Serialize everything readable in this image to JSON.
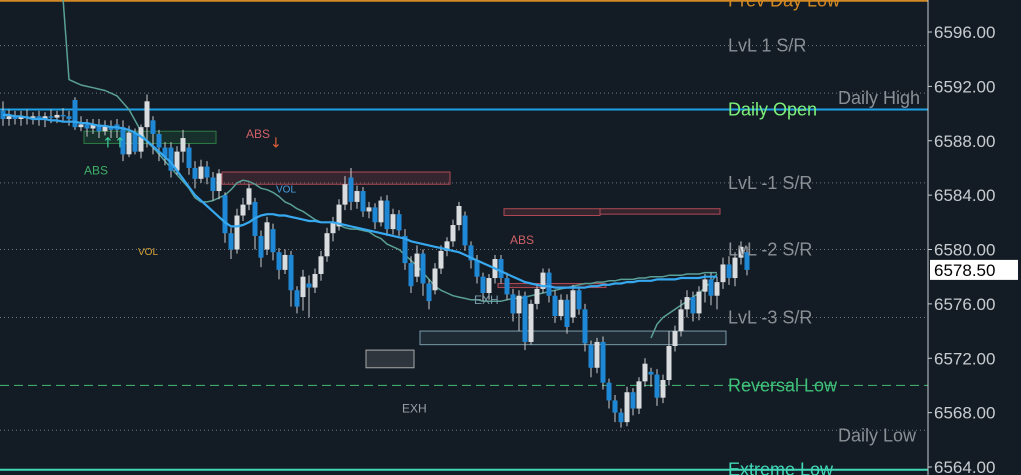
{
  "chart_data": {
    "type": "candlestick",
    "ylim": [
      6563.3,
      6598.4
    ],
    "y_ticks": [
      "6596.00",
      "6592.00",
      "6588.00",
      "6584.00",
      "6580.00",
      "6576.00",
      "6572.00",
      "6568.00",
      "6564.00"
    ],
    "y_tick_values": [
      6596,
      6592,
      6588,
      6584,
      6580,
      6576,
      6572,
      6568,
      6564
    ],
    "last_price": "6578.50",
    "last_price_value": 6578.5,
    "levels": [
      {
        "label": "Prev Day Low",
        "value": 6598.3,
        "color": "#d48a24",
        "style": "solid"
      },
      {
        "label": "LvL 1 S/R",
        "value": 6595.0,
        "color": "#8a9096",
        "style": "dotted"
      },
      {
        "label": "Daily High",
        "value": 6591.5,
        "color": "#8a9096",
        "style": "dotted"
      },
      {
        "label": "Daily Open",
        "value": 6590.3,
        "color": "#1ea0e6",
        "style": "solid"
      },
      {
        "label": "LvL -1 S/R",
        "value": 6584.9,
        "color": "#8a9096",
        "style": "dotted"
      },
      {
        "label": "LvL -2 S/R",
        "value": 6580.0,
        "color": "#8a9096",
        "style": "dotted"
      },
      {
        "label": "LvL -3 S/R",
        "value": 6575.0,
        "color": "#8a9096",
        "style": "dotted"
      },
      {
        "label": "Reversal Low",
        "value": 6570.0,
        "color": "#3fa86a",
        "style": "dashed"
      },
      {
        "label": "Daily Low",
        "value": 6566.7,
        "color": "#8a9096",
        "style": "dotted"
      },
      {
        "label": "Extreme Low",
        "value": 6563.8,
        "color": "#40d8b8",
        "style": "solid"
      }
    ],
    "candles": [
      [
        6590.2,
        6589.6,
        6590.9,
        6589.1
      ],
      [
        6589.6,
        6589.8,
        6590.3,
        6589.1
      ],
      [
        6589.8,
        6589.6,
        6590.2,
        6589.2
      ],
      [
        6589.6,
        6589.8,
        6590.2,
        6589.1
      ],
      [
        6589.8,
        6589.7,
        6590.3,
        6589.2
      ],
      [
        6589.7,
        6589.8,
        6590.1,
        6589.2
      ],
      [
        6589.8,
        6589.6,
        6590.2,
        6589.1
      ],
      [
        6589.6,
        6589.8,
        6590.1,
        6589.0
      ],
      [
        6589.8,
        6589.7,
        6590.3,
        6589.3
      ],
      [
        6589.7,
        6589.9,
        6590.2,
        6589.3
      ],
      [
        6589.9,
        6589.8,
        6590.4,
        6589.4
      ],
      [
        6589.8,
        6589.6,
        6590.2,
        6589.1
      ],
      [
        6591.0,
        6589.0,
        6591.2,
        6588.8
      ],
      [
        6589.0,
        6589.2,
        6589.8,
        6588.7
      ],
      [
        6589.2,
        6588.9,
        6589.6,
        6588.3
      ],
      [
        6588.9,
        6589.2,
        6589.6,
        6588.5
      ],
      [
        6589.2,
        6588.7,
        6589.6,
        6588.2
      ],
      [
        6588.7,
        6589.1,
        6589.5,
        6588.4
      ],
      [
        6589.1,
        6588.8,
        6589.5,
        6588.2
      ],
      [
        6589.2,
        6588.8,
        6589.6,
        6588.2
      ],
      [
        6589.0,
        6587.0,
        6589.5,
        6586.5
      ],
      [
        6587.0,
        6588.6,
        6589.1,
        6586.8
      ],
      [
        6588.6,
        6587.2,
        6588.9,
        6587.0
      ],
      [
        6587.2,
        6589.0,
        6589.2,
        6586.7
      ],
      [
        6589.0,
        6590.9,
        6591.4,
        6587.5
      ],
      [
        6589.5,
        6588.5,
        6589.8,
        6587.0
      ],
      [
        6588.5,
        6587.5,
        6588.8,
        6586.5
      ],
      [
        6587.5,
        6586.8,
        6587.9,
        6586.2
      ],
      [
        6587.5,
        6585.8,
        6587.9,
        6585.3
      ],
      [
        6585.8,
        6587.2,
        6587.6,
        6585.5
      ],
      [
        6587.2,
        6588.2,
        6588.8,
        6586.4
      ],
      [
        6587.5,
        6586.0,
        6587.8,
        6585.5
      ],
      [
        6586.0,
        6585.2,
        6586.5,
        6584.5
      ],
      [
        6585.2,
        6586.1,
        6586.6,
        6584.9
      ],
      [
        6586.1,
        6585.3,
        6586.5,
        6584.8
      ],
      [
        6585.3,
        6584.3,
        6585.7,
        6583.6
      ],
      [
        6584.3,
        6585.6,
        6585.9,
        6583.7
      ],
      [
        6584.0,
        6581.2,
        6584.2,
        6580.5
      ],
      [
        6581.2,
        6580.0,
        6581.6,
        6579.3
      ],
      [
        6580.0,
        6582.5,
        6583.0,
        6579.7
      ],
      [
        6582.5,
        6583.3,
        6583.8,
        6582.1
      ],
      [
        6583.3,
        6584.5,
        6584.8,
        6582.9
      ],
      [
        6583.5,
        6581.0,
        6583.8,
        6580.0
      ],
      [
        6581.0,
        6579.4,
        6581.4,
        6578.7
      ],
      [
        6580.0,
        6582.0,
        6582.4,
        6579.6
      ],
      [
        6581.5,
        6579.8,
        6581.9,
        6579.2
      ],
      [
        6579.8,
        6578.5,
        6580.1,
        6577.8
      ],
      [
        6578.5,
        6579.6,
        6580.0,
        6578.2
      ],
      [
        6579.6,
        6577.0,
        6579.9,
        6575.8
      ],
      [
        6577.0,
        6575.8,
        6577.3,
        6575.3
      ],
      [
        6576.5,
        6578.0,
        6578.5,
        6575.5
      ],
      [
        6577.5,
        6577.2,
        6578.1,
        6575.0
      ],
      [
        6577.2,
        6578.2,
        6578.6,
        6576.8
      ],
      [
        6578.2,
        6579.5,
        6579.9,
        6577.7
      ],
      [
        6579.5,
        6581.2,
        6581.6,
        6579.1
      ],
      [
        6581.2,
        6582.0,
        6582.4,
        6580.6
      ],
      [
        6581.7,
        6583.3,
        6583.7,
        6581.4
      ],
      [
        6583.3,
        6584.8,
        6585.4,
        6582.9
      ],
      [
        6585.3,
        6583.5,
        6586.0,
        6582.9
      ],
      [
        6583.5,
        6584.3,
        6584.7,
        6583.0
      ],
      [
        6584.3,
        6582.8,
        6584.6,
        6582.4
      ],
      [
        6582.8,
        6583.1,
        6583.5,
        6582.3
      ],
      [
        6583.1,
        6582.0,
        6583.4,
        6581.5
      ],
      [
        6582.0,
        6583.6,
        6583.9,
        6581.7
      ],
      [
        6583.6,
        6581.5,
        6584.0,
        6581.0
      ],
      [
        6581.5,
        6582.6,
        6583.0,
        6581.1
      ],
      [
        6582.6,
        6581.4,
        6582.9,
        6581.0
      ],
      [
        6581.0,
        6579.0,
        6581.5,
        6578.5
      ],
      [
        6579.0,
        6577.3,
        6579.5,
        6576.8
      ],
      [
        6578.0,
        6579.7,
        6580.3,
        6577.6
      ],
      [
        6579.7,
        6577.5,
        6580.0,
        6576.6
      ],
      [
        6577.5,
        6576.2,
        6577.8,
        6575.6
      ],
      [
        6577.0,
        6578.6,
        6579.0,
        6576.7
      ],
      [
        6578.6,
        6579.9,
        6580.3,
        6578.2
      ],
      [
        6579.9,
        6580.6,
        6580.9,
        6579.5
      ],
      [
        6580.6,
        6581.8,
        6582.2,
        6580.2
      ],
      [
        6581.8,
        6583.2,
        6583.5,
        6581.4
      ],
      [
        6582.5,
        6580.3,
        6582.8,
        6579.9
      ],
      [
        6580.3,
        6579.2,
        6580.6,
        6578.6
      ],
      [
        6579.2,
        6578.0,
        6579.6,
        6577.5
      ],
      [
        6578.0,
        6576.8,
        6578.3,
        6576.2
      ],
      [
        6576.8,
        6577.9,
        6578.2,
        6576.3
      ],
      [
        6577.9,
        6579.3,
        6579.6,
        6577.5
      ],
      [
        6579.3,
        6577.9,
        6579.6,
        6577.5
      ],
      [
        6577.9,
        6576.7,
        6578.3,
        6576.3
      ],
      [
        6576.7,
        6575.3,
        6577.1,
        6574.7
      ],
      [
        6575.3,
        6576.6,
        6577.0,
        6574.0
      ],
      [
        6576.6,
        6573.2,
        6576.9,
        6572.6
      ],
      [
        6573.2,
        6576.0,
        6576.3,
        6573.0
      ],
      [
        6576.0,
        6577.1,
        6577.5,
        6575.6
      ],
      [
        6577.1,
        6578.3,
        6578.6,
        6576.8
      ],
      [
        6578.3,
        6576.6,
        6578.6,
        6576.1
      ],
      [
        6576.6,
        6575.1,
        6577.0,
        6574.6
      ],
      [
        6575.1,
        6576.3,
        6576.7,
        6574.8
      ],
      [
        6576.3,
        6574.3,
        6576.7,
        6573.8
      ],
      [
        6575.0,
        6577.0,
        6577.4,
        6574.6
      ],
      [
        6577.0,
        6575.6,
        6577.3,
        6575.2
      ],
      [
        6575.6,
        6573.1,
        6576.0,
        6572.5
      ],
      [
        6573.0,
        6571.3,
        6573.3,
        6570.6
      ],
      [
        6571.3,
        6573.2,
        6573.5,
        6570.9
      ],
      [
        6573.2,
        6570.2,
        6573.6,
        6569.7
      ],
      [
        6570.2,
        6568.9,
        6570.5,
        6568.3
      ],
      [
        6568.9,
        6568.0,
        6569.3,
        6567.3
      ],
      [
        6568.0,
        6567.3,
        6568.3,
        6566.9
      ],
      [
        6567.3,
        6569.5,
        6569.9,
        6567.0
      ],
      [
        6569.5,
        6568.3,
        6569.8,
        6567.8
      ],
      [
        6568.3,
        6570.3,
        6570.6,
        6567.9
      ],
      [
        6570.3,
        6571.6,
        6572.0,
        6569.9
      ],
      [
        6571.0,
        6570.8,
        6571.3,
        6569.9
      ],
      [
        6570.8,
        6569.1,
        6571.2,
        6568.5
      ],
      [
        6569.1,
        6570.4,
        6570.8,
        6568.7
      ],
      [
        6570.4,
        6572.9,
        6574.0,
        6570.0
      ],
      [
        6572.9,
        6574.0,
        6574.4,
        6572.5
      ],
      [
        6574.0,
        6575.6,
        6576.3,
        6573.6
      ],
      [
        6575.6,
        6576.5,
        6577.0,
        6575.0
      ],
      [
        6576.5,
        6575.3,
        6576.9,
        6574.7
      ],
      [
        6575.3,
        6576.9,
        6577.3,
        6574.8
      ],
      [
        6576.9,
        6577.8,
        6578.2,
        6576.1
      ],
      [
        6577.8,
        6576.6,
        6578.3,
        6575.9
      ],
      [
        6576.6,
        6577.6,
        6578.0,
        6575.6
      ],
      [
        6577.6,
        6578.9,
        6579.4,
        6577.1
      ],
      [
        6578.9,
        6577.9,
        6579.5,
        6577.4
      ],
      [
        6577.9,
        6579.4,
        6579.8,
        6577.3
      ],
      [
        6579.4,
        6580.2,
        6580.6,
        6578.9
      ],
      [
        6579.8,
        6578.5,
        6580.2,
        6578.1
      ]
    ],
    "vwap": [
      6589.9,
      6589.9,
      6589.8,
      6589.8,
      6589.7,
      6589.6,
      6589.6,
      6589.6,
      6589.5,
      6589.5,
      6589.4,
      6589.4,
      6589.4,
      6589.3,
      6589.3,
      6589.2,
      6589.1,
      6589.1,
      6589.0,
      6589.0,
      6588.9,
      6588.8,
      6588.6,
      6588.3,
      6588.0,
      6587.6,
      6587.2,
      6586.8,
      6586.4,
      6585.8,
      6585.2,
      6584.6,
      6584.0,
      6583.6,
      6583.2,
      6582.8,
      6582.4,
      6582.0,
      6581.7,
      6581.7,
      6581.8,
      6582.0,
      6582.3,
      6582.5,
      6582.6,
      6582.6,
      6582.5,
      6582.5,
      6582.4,
      6582.3,
      6582.2,
      6582.1,
      6582.1,
      6582.0,
      6582.0,
      6582.0,
      6581.9,
      6581.8,
      6581.7,
      6581.6,
      6581.5,
      6581.4,
      6581.3,
      6581.2,
      6581.1,
      6581.0,
      6580.9,
      6580.8,
      6580.6,
      6580.5,
      6580.4,
      6580.3,
      6580.2,
      6580.1,
      6580.0,
      6579.9,
      6579.8,
      6579.6,
      6579.4,
      6579.2,
      6579.0,
      6578.8,
      6578.6,
      6578.4,
      6578.2,
      6578.0,
      6577.8,
      6577.6,
      6577.5,
      6577.4,
      6577.3,
      6577.3,
      6577.2,
      6577.2,
      6577.2,
      6577.2,
      6577.2,
      6577.2,
      6577.3,
      6577.3,
      6577.4,
      6577.4,
      6577.5,
      6577.5,
      6577.6,
      6577.6,
      6577.7,
      6577.7,
      6577.7,
      6577.8,
      6577.8,
      6577.8,
      6577.8,
      6577.9,
      6577.9,
      6577.9,
      6577.9,
      6578.0,
      6578.0,
      6578.0
    ],
    "upper_band": [
      null,
      null,
      null,
      null,
      null,
      null,
      null,
      null,
      null,
      null,
      6598.5,
      6592.5,
      6592.3,
      6592.1,
      6592.0,
      6591.9,
      6591.8,
      6591.7,
      6591.5,
      6591.3,
      6590.8,
      6590.3,
      6589.5,
      6588.7,
      6587.9,
      6587.5,
      6587.0,
      6586.5,
      6586.0,
      6585.5,
      6585.0,
      6584.5,
      6583.8,
      6583.5,
      6583.5,
      6583.6,
      6583.8,
      6584.0,
      6584.4,
      6584.9,
      6585.1,
      6585.0,
      6584.8,
      6584.5,
      6584.4,
      6584.2,
      6583.9,
      6583.5,
      6583.3,
      6583.0,
      6582.8,
      6582.5,
      6582.2,
      6582.0,
      6582.0,
      6582.0,
      6581.8,
      6581.6,
      6581.5,
      6581.5,
      6581.4,
      6581.3,
      6581.0,
      6580.8,
      6580.4,
      6580.2,
      6580.0,
      6579.6,
      6579.2,
      6578.8,
      6578.3,
      6577.8,
      6577.3,
      6577.0,
      6576.8,
      6576.6,
      6576.5,
      6576.4,
      6576.3,
      6576.3,
      6576.2,
      6576.2,
      6576.2,
      6576.2,
      6576.3,
      6576.4,
      6576.4,
      6576.5,
      6576.6,
      6576.7,
      6576.8,
      6576.9,
      6577.0,
      6577.1,
      6577.2,
      6577.3,
      6577.4,
      6577.5,
      6577.5,
      6577.6,
      6577.6,
      6577.7,
      6577.7,
      6577.8,
      6577.8,
      6577.8,
      6577.9,
      6577.9,
      6578.0,
      6578.0,
      6578.0,
      6578.1,
      6578.1,
      6578.1,
      6578.2,
      6578.2,
      6578.2,
      6578.3,
      6578.3,
      6578.3
    ],
    "lower_band": [
      null,
      null,
      null,
      null,
      null,
      null,
      null,
      null,
      null,
      null,
      null,
      null,
      null,
      null,
      null,
      null,
      null,
      null,
      null,
      null,
      null,
      null,
      null,
      null,
      null,
      null,
      null,
      null,
      null,
      null,
      null,
      null,
      null,
      null,
      null,
      null,
      null,
      null,
      null,
      null,
      null,
      null,
      null,
      null,
      null,
      null,
      null,
      null,
      null,
      null,
      null,
      null,
      null,
      null,
      null,
      null,
      null,
      null,
      null,
      null,
      null,
      null,
      null,
      null,
      null,
      null,
      null,
      null,
      null,
      null,
      null,
      null,
      null,
      null,
      null,
      null,
      null,
      null,
      null,
      null,
      null,
      null,
      null,
      null,
      null,
      null,
      null,
      null,
      null,
      null,
      null,
      null,
      null,
      null,
      null,
      null,
      null,
      null,
      null,
      null,
      null,
      null,
      null,
      null,
      null,
      null,
      null,
      null,
      6573.5,
      6574.5,
      6575.0,
      6575.3,
      6575.6,
      6575.9,
      6576.2,
      6576.5,
      6576.8,
      6577.2,
      6577.6,
      6578.2
    ],
    "zones": [
      {
        "kind": "support",
        "from": 14,
        "to": 36,
        "hi": 6588.7,
        "lo": 6587.8,
        "color": "#2d7a46"
      },
      {
        "kind": "resistance",
        "from": 37,
        "to": 75,
        "hi": 6585.7,
        "lo": 6584.8,
        "color": "#b04a55"
      },
      {
        "kind": "resistance",
        "from": 84,
        "to": 100,
        "hi": 6583.0,
        "lo": 6582.5,
        "color": "#b04a55"
      },
      {
        "kind": "resistance",
        "from": 100,
        "to": 120,
        "hi": 6583.0,
        "lo": 6582.6,
        "color": "#b04a55"
      },
      {
        "kind": "resistance",
        "from": 83,
        "to": 101,
        "hi": 6577.5,
        "lo": 6577.2,
        "color": "#b04a55"
      },
      {
        "kind": "support",
        "from": 70,
        "to": 121,
        "hi": 6574.0,
        "lo": 6573.0,
        "color": "#7a9aaa"
      },
      {
        "kind": "neutral",
        "from": 61,
        "to": 69,
        "hi": 6572.6,
        "lo": 6571.3,
        "color": "#aaaaaa"
      }
    ],
    "annotations": [
      {
        "text": "ABS",
        "bar": 41,
        "value": 6588.2,
        "color": "#d06068"
      },
      {
        "text": "ABS",
        "bar": 14,
        "value": 6585.5,
        "color": "#3fae6a"
      },
      {
        "text": "VOL",
        "bar": 23,
        "value": 6579.6,
        "color": "#d4a23a"
      },
      {
        "text": "VOL",
        "bar": 46,
        "value": 6584.2,
        "color": "#4aa0e0"
      },
      {
        "text": "ABS",
        "bar": 85,
        "value": 6580.4,
        "color": "#d06068"
      },
      {
        "text": "EXH",
        "bar": 79,
        "value": 6576.0,
        "color": "#7a9aaa"
      },
      {
        "text": "EXH",
        "bar": 67,
        "value": 6568.0,
        "color": "#9aa0a6"
      }
    ],
    "arrows": [
      {
        "bar": 45,
        "value": 6587.5,
        "dir": "down",
        "color": "#e0603a"
      },
      {
        "bar": 17,
        "value": 6587.5,
        "dir": "up",
        "color": "#3fd0a0"
      },
      {
        "bar": 19,
        "value": 6587.5,
        "dir": "up",
        "color": "#3fd0a0"
      }
    ],
    "colors": {
      "background": "#131c24",
      "axis": "#c8ccd0",
      "up_candle": "#d9dde0",
      "down_candle": "#1e88d6",
      "vwap": "#36a8f0",
      "band": "#5aa096"
    }
  }
}
